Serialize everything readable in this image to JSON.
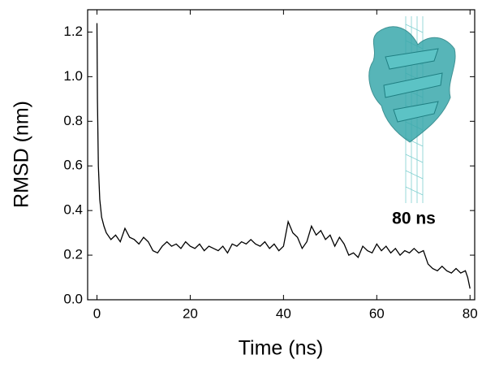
{
  "chart_data": {
    "type": "line",
    "x_label": "Time (ns)",
    "y_label": "RMSD (nm)",
    "annotation": "80 ns",
    "xlim": [
      -2,
      81
    ],
    "ylim": [
      0,
      1.3
    ],
    "xticks": [
      0,
      20,
      40,
      60,
      80
    ],
    "yticks": [
      {
        "value": 0,
        "label": "0.0"
      },
      0.2,
      0.4,
      0.6,
      0.8,
      {
        "value": 1,
        "label": "1.0"
      },
      1.2
    ],
    "x": [
      0,
      0.1,
      0.3,
      0.6,
      1,
      1.5,
      2,
      3,
      4,
      5,
      6,
      7,
      8,
      9,
      10,
      11,
      12,
      13,
      14,
      15,
      16,
      17,
      18,
      19,
      20,
      21,
      22,
      23,
      24,
      25,
      26,
      27,
      28,
      29,
      30,
      31,
      32,
      33,
      34,
      35,
      36,
      37,
      38,
      39,
      40,
      41,
      42,
      43,
      44,
      45,
      46,
      47,
      48,
      49,
      50,
      51,
      52,
      53,
      54,
      55,
      56,
      57,
      58,
      59,
      60,
      61,
      62,
      63,
      64,
      65,
      66,
      67,
      68,
      69,
      70,
      71,
      72,
      73,
      74,
      75,
      76,
      77,
      78,
      79,
      79.5,
      80
    ],
    "series": [
      {
        "color": "#000000",
        "values": [
          1.24,
          0.9,
          0.6,
          0.45,
          0.37,
          0.33,
          0.3,
          0.27,
          0.29,
          0.26,
          0.32,
          0.28,
          0.27,
          0.25,
          0.28,
          0.26,
          0.22,
          0.21,
          0.24,
          0.26,
          0.24,
          0.25,
          0.23,
          0.26,
          0.24,
          0.23,
          0.25,
          0.22,
          0.24,
          0.23,
          0.22,
          0.24,
          0.21,
          0.25,
          0.24,
          0.26,
          0.25,
          0.27,
          0.25,
          0.24,
          0.26,
          0.23,
          0.25,
          0.22,
          0.24,
          0.35,
          0.3,
          0.28,
          0.23,
          0.26,
          0.33,
          0.29,
          0.31,
          0.27,
          0.29,
          0.24,
          0.28,
          0.25,
          0.2,
          0.21,
          0.19,
          0.24,
          0.22,
          0.21,
          0.25,
          0.22,
          0.24,
          0.21,
          0.23,
          0.2,
          0.22,
          0.21,
          0.23,
          0.21,
          0.22,
          0.16,
          0.14,
          0.13,
          0.15,
          0.13,
          0.12,
          0.14,
          0.12,
          0.13,
          0.1,
          0.05
        ]
      }
    ]
  }
}
